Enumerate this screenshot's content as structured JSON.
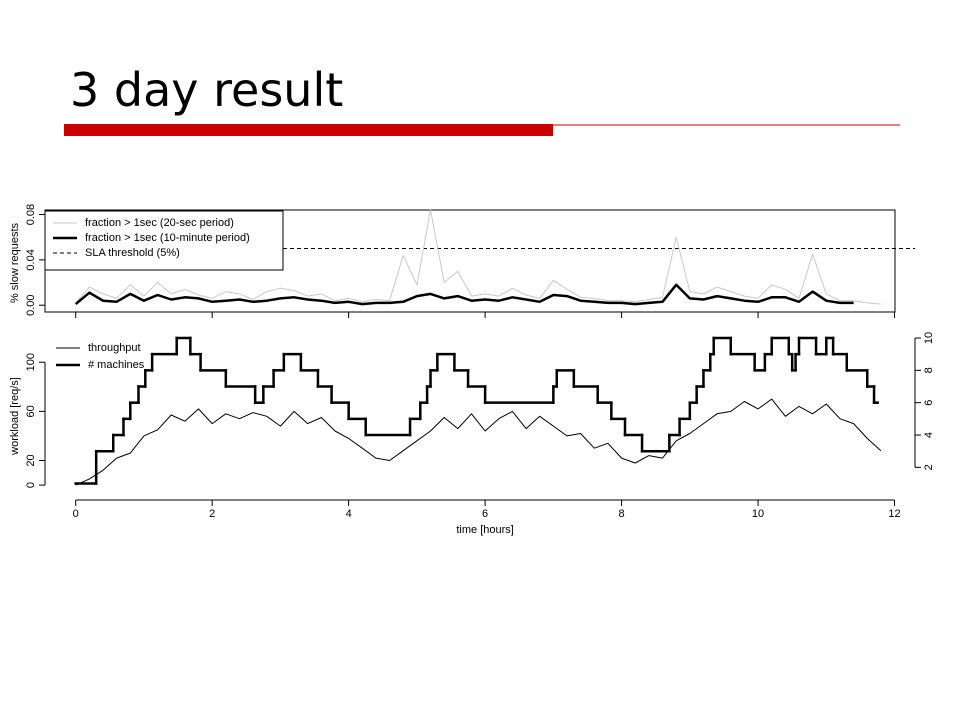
{
  "title": "3 day result",
  "chart_data": [
    {
      "type": "line",
      "ylabel": "% slow requests",
      "xlim": [
        -0.45,
        12.3
      ],
      "ylim": [
        -0.006,
        0.084
      ],
      "xticks": [
        0,
        2,
        4,
        6,
        8,
        10,
        12
      ],
      "xtick_labels": false,
      "yticks": [
        {
          "value": 0,
          "label": "0.00"
        },
        {
          "value": 0.04,
          "label": "0.04"
        },
        {
          "value": 0.08,
          "label": "0.08"
        }
      ],
      "legend": "top-left",
      "legend_box": true,
      "x": [
        0,
        0.2,
        0.4,
        0.6,
        0.8,
        1.0,
        1.2,
        1.4,
        1.6,
        1.8,
        2.0,
        2.2,
        2.4,
        2.6,
        2.8,
        3.0,
        3.2,
        3.4,
        3.6,
        3.8,
        4.0,
        4.2,
        4.4,
        4.6,
        4.8,
        5.0,
        5.2,
        5.4,
        5.6,
        5.8,
        6.0,
        6.2,
        6.4,
        6.6,
        6.8,
        7.0,
        7.2,
        7.4,
        7.6,
        7.8,
        8.0,
        8.2,
        8.4,
        8.6,
        8.8,
        9.0,
        9.2,
        9.4,
        9.6,
        9.8,
        10.0,
        10.2,
        10.4,
        10.6,
        10.8,
        11.0,
        11.2,
        11.4,
        11.6,
        11.8
      ],
      "series": [
        {
          "name": "fraction > 1sec (20-sec period)",
          "color": "#c8c8c8",
          "width": 1,
          "values": [
            0.002,
            0.016,
            0.01,
            0.006,
            0.018,
            0.008,
            0.02,
            0.01,
            0.014,
            0.009,
            0.006,
            0.012,
            0.01,
            0.005,
            0.012,
            0.015,
            0.013,
            0.008,
            0.01,
            0.004,
            0.006,
            0.003,
            0.005,
            0.004,
            0.044,
            0.018,
            0.084,
            0.02,
            0.03,
            0.008,
            0.01,
            0.008,
            0.015,
            0.009,
            0.006,
            0.022,
            0.014,
            0.007,
            0.006,
            0.004,
            0.004,
            0.003,
            0.005,
            0.007,
            0.06,
            0.012,
            0.01,
            0.016,
            0.012,
            0.008,
            0.006,
            0.018,
            0.014,
            0.006,
            0.045,
            0.01,
            0.004,
            0.004,
            0.002,
            0.001
          ]
        },
        {
          "name": "fraction > 1sec (10-minute period)",
          "color": "#000000",
          "width": 2.5,
          "values": [
            0.001,
            0.011,
            0.004,
            0.003,
            0.01,
            0.004,
            0.009,
            0.005,
            0.007,
            0.006,
            0.003,
            0.004,
            0.005,
            0.003,
            0.004,
            0.006,
            0.007,
            0.005,
            0.004,
            0.002,
            0.003,
            0.001,
            0.002,
            0.002,
            0.003,
            0.008,
            0.01,
            0.006,
            0.008,
            0.004,
            0.005,
            0.004,
            0.007,
            0.005,
            0.003,
            0.009,
            0.008,
            0.004,
            0.003,
            0.002,
            0.002,
            0.001,
            0.002,
            0.003,
            0.018,
            0.006,
            0.005,
            0.008,
            0.006,
            0.004,
            0.003,
            0.007,
            0.007,
            0.003,
            0.012,
            0.004,
            0.002,
            0.002,
            null,
            null
          ]
        }
      ],
      "hlines": [
        {
          "name": "SLA threshold (5%)",
          "value": 0.05,
          "color": "#000000",
          "dash": true
        }
      ]
    },
    {
      "type": "line",
      "xlabel": "time [hours]",
      "ylabel": "workload [req/s]",
      "xlim": [
        -0.45,
        12.3
      ],
      "ylim": [
        -4,
        119.7
      ],
      "y2lim": [
        0.6,
        10
      ],
      "xticks": [
        0,
        2,
        4,
        6,
        8,
        10,
        12
      ],
      "xtick_labels": true,
      "yticks": [
        0,
        20,
        60,
        100
      ],
      "y2ticks": [
        2,
        4,
        6,
        8,
        10
      ],
      "legend": "top-left",
      "legend_box": false,
      "x": [
        0,
        0.2,
        0.4,
        0.6,
        0.8,
        1.0,
        1.2,
        1.4,
        1.6,
        1.8,
        2.0,
        2.2,
        2.4,
        2.6,
        2.8,
        3.0,
        3.2,
        3.4,
        3.6,
        3.8,
        4.0,
        4.2,
        4.4,
        4.6,
        4.8,
        5.0,
        5.2,
        5.4,
        5.6,
        5.8,
        6.0,
        6.2,
        6.4,
        6.6,
        6.8,
        7.0,
        7.2,
        7.4,
        7.6,
        7.8,
        8.0,
        8.2,
        8.4,
        8.6,
        8.8,
        9.0,
        9.2,
        9.4,
        9.6,
        9.8,
        10.0,
        10.2,
        10.4,
        10.6,
        10.8,
        11.0,
        11.2,
        11.4,
        11.6,
        11.8
      ],
      "series": [
        {
          "name": "throughput",
          "color": "#000000",
          "width": 1,
          "values": [
            0,
            5,
            12,
            22,
            26,
            40,
            45,
            57,
            52,
            62,
            50,
            58,
            54,
            59,
            56,
            48,
            60,
            50,
            55,
            44,
            38,
            30,
            22,
            20,
            28,
            36,
            44,
            55,
            46,
            58,
            44,
            54,
            60,
            46,
            56,
            48,
            40,
            42,
            30,
            34,
            22,
            18,
            24,
            22,
            36,
            42,
            50,
            58,
            60,
            68,
            62,
            70,
            56,
            64,
            58,
            66,
            54,
            50,
            38,
            28
          ]
        },
        {
          "name": "# machines",
          "color": "#000000",
          "width": 2.5,
          "axis": "y2",
          "step": true,
          "x": [
            0,
            0.3,
            0.55,
            0.7,
            0.8,
            0.92,
            1.02,
            1.12,
            1.48,
            1.68,
            1.83,
            2.2,
            2.63,
            2.75,
            2.9,
            3.05,
            3.3,
            3.55,
            3.75,
            4.0,
            4.25,
            4.9,
            5.05,
            5.15,
            5.2,
            5.3,
            5.55,
            5.75,
            6.0,
            7.0,
            7.05,
            7.3,
            7.65,
            7.85,
            8.05,
            8.3,
            8.7,
            8.85,
            9.0,
            9.1,
            9.2,
            9.3,
            9.35,
            9.6,
            9.95,
            10.1,
            10.2,
            10.45,
            10.5,
            10.55,
            10.6,
            10.85,
            11.0,
            11.1,
            11.3,
            11.6,
            11.7,
            11.75
          ],
          "values": [
            1,
            3,
            4,
            5,
            6,
            7,
            8,
            9,
            10,
            9,
            8,
            7,
            6,
            7,
            8,
            9,
            8,
            7,
            6,
            5,
            4,
            5,
            6,
            7,
            8,
            9,
            8,
            7,
            6,
            7,
            8,
            7,
            6,
            5,
            4,
            3,
            4,
            5,
            6,
            7,
            8,
            9,
            10,
            9,
            8,
            9,
            10,
            9,
            8,
            9,
            10,
            9,
            10,
            9,
            8,
            7,
            6,
            6
          ]
        }
      ]
    }
  ]
}
